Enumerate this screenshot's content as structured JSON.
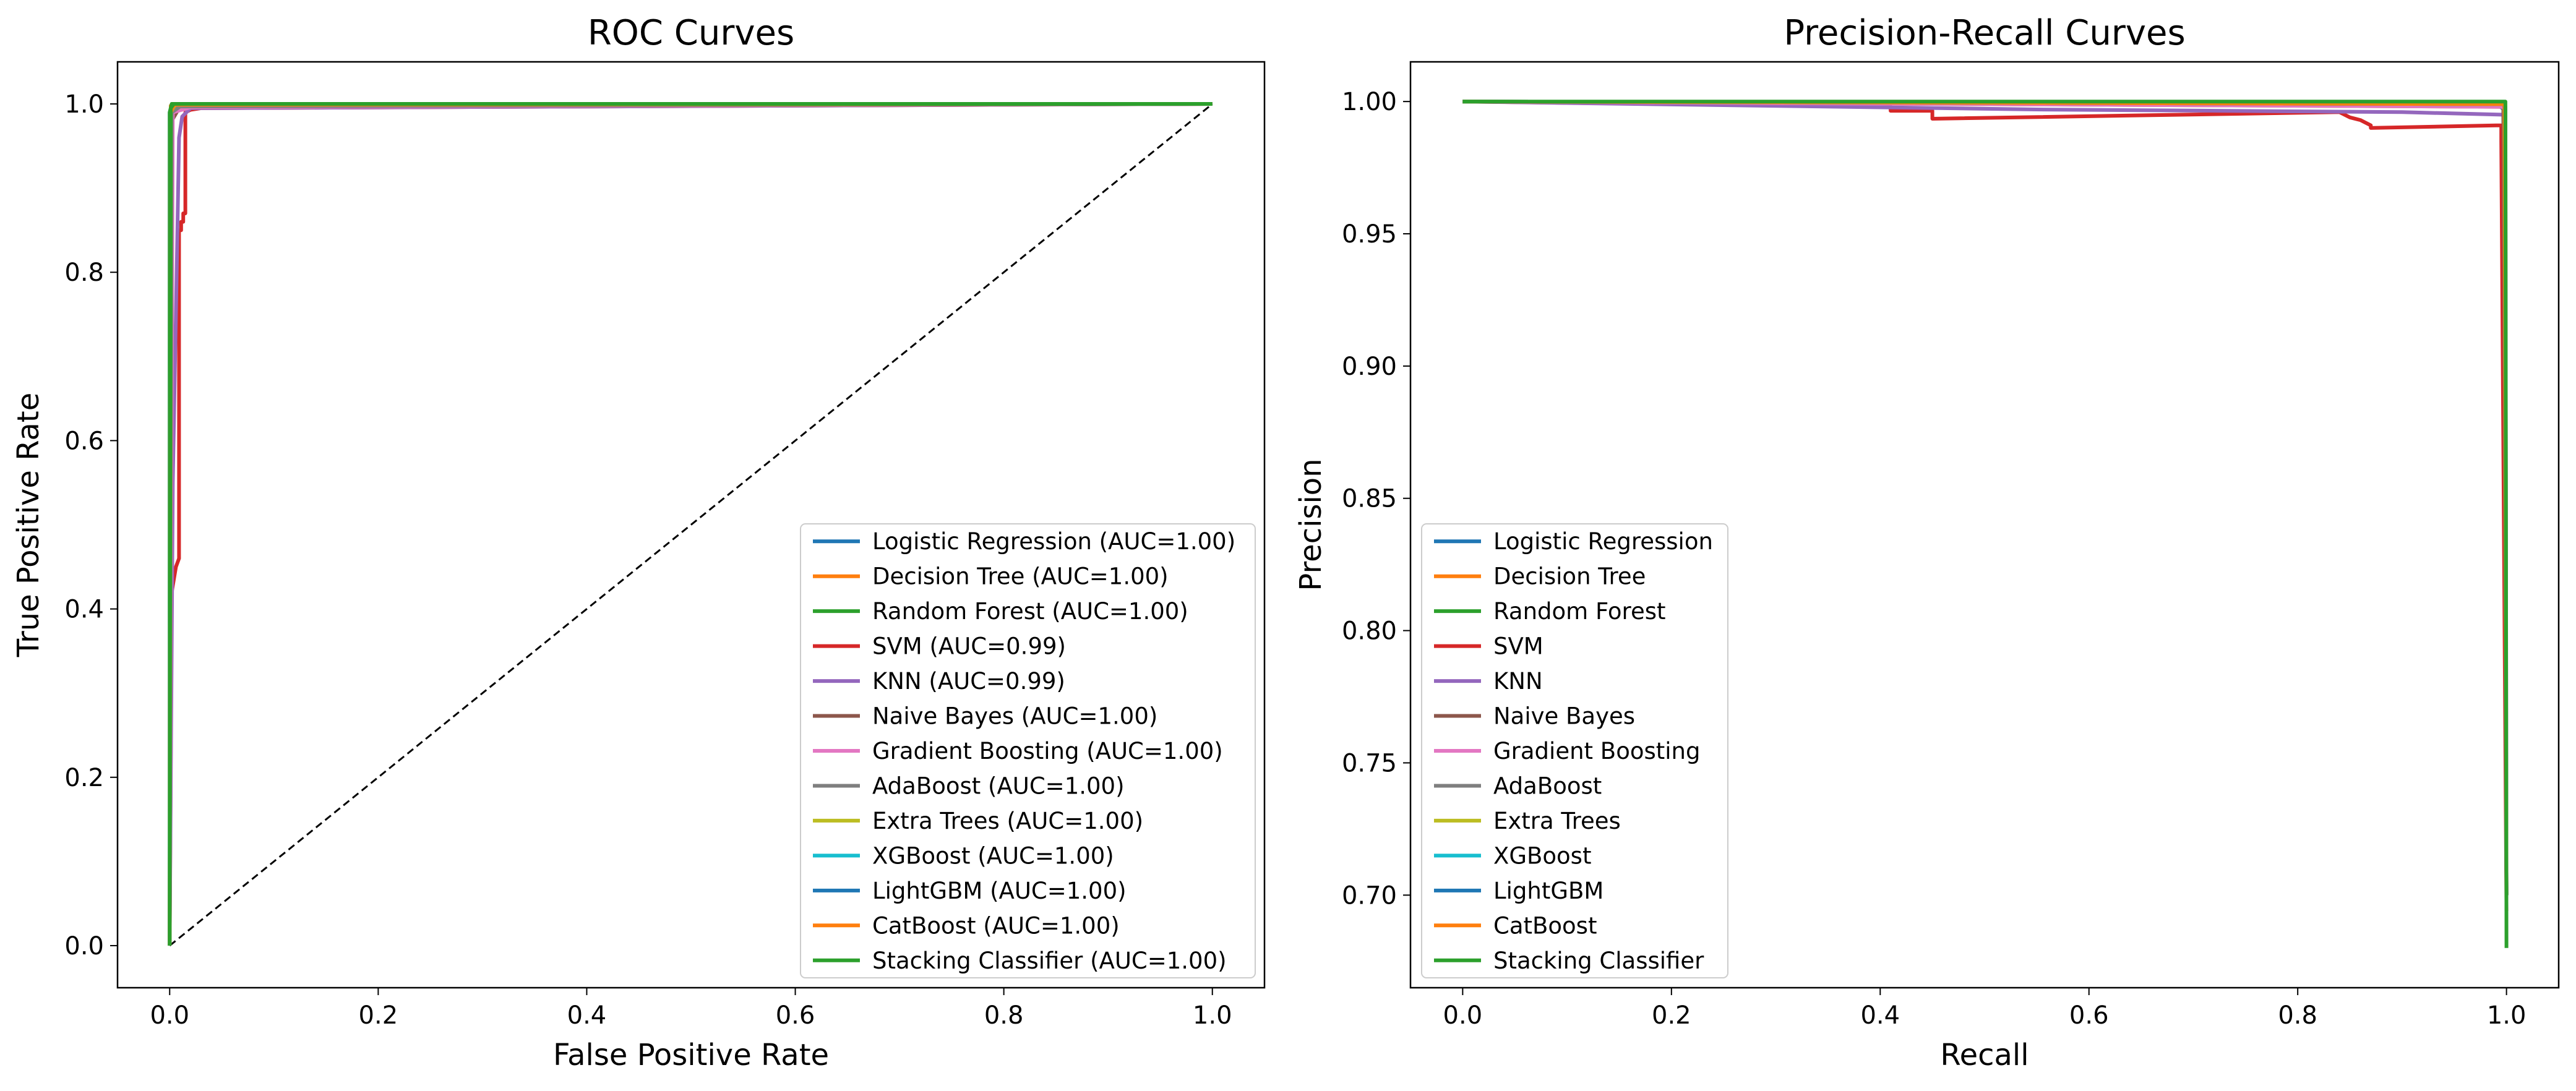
{
  "chart_data": [
    {
      "type": "line",
      "title": "ROC Curves",
      "xlabel": "False Positive Rate",
      "ylabel": "True Positive Rate",
      "xlim": [
        -0.05,
        1.05
      ],
      "ylim": [
        -0.05,
        1.05
      ],
      "xticks": [
        0.0,
        0.2,
        0.4,
        0.6,
        0.8,
        1.0
      ],
      "yticks": [
        0.0,
        0.2,
        0.4,
        0.6,
        0.8,
        1.0
      ],
      "xtick_labels": [
        "0.0",
        "0.2",
        "0.4",
        "0.6",
        "0.8",
        "1.0"
      ],
      "ytick_labels": [
        "0.0",
        "0.2",
        "0.4",
        "0.6",
        "0.8",
        "1.0"
      ],
      "grid": false,
      "legend": "lower-right",
      "reference_line": {
        "x": [
          0,
          1
        ],
        "y": [
          0,
          1
        ],
        "color": "#000000",
        "style": "dashed"
      },
      "series": [
        {
          "name": "Logistic Regression (AUC=1.00)",
          "color": "#1f77b4",
          "x": [
            0,
            0,
            0.002,
            1.0
          ],
          "y": [
            0,
            0.99,
            0.999,
            1.0
          ]
        },
        {
          "name": "Decision Tree (AUC=1.00)",
          "color": "#ff7f0e",
          "x": [
            0,
            0.001,
            1.0
          ],
          "y": [
            0,
            0.998,
            1.0
          ]
        },
        {
          "name": "Random Forest (AUC=1.00)",
          "color": "#2ca02c",
          "x": [
            0,
            0,
            0.002,
            1.0
          ],
          "y": [
            0,
            0.99,
            1.0,
            1.0
          ]
        },
        {
          "name": "SVM (AUC=0.99)",
          "color": "#d62728",
          "x": [
            0,
            0.002,
            0.006,
            0.009,
            0.009,
            0.011,
            0.011,
            0.013,
            0.013,
            0.015,
            0.015,
            0.02,
            0.03,
            1.0
          ],
          "y": [
            0,
            0.42,
            0.45,
            0.46,
            0.85,
            0.85,
            0.86,
            0.86,
            0.87,
            0.87,
            0.99,
            0.993,
            0.995,
            1.0
          ]
        },
        {
          "name": "KNN (AUC=0.99)",
          "color": "#9467bd",
          "x": [
            0,
            0.003,
            0.007,
            0.009,
            0.012,
            0.02,
            1.0
          ],
          "y": [
            0,
            0.55,
            0.82,
            0.96,
            0.985,
            0.995,
            1.0
          ]
        },
        {
          "name": "Naive Bayes (AUC=1.00)",
          "color": "#8c564b",
          "x": [
            0,
            0.002,
            0.01,
            1.0
          ],
          "y": [
            0,
            0.98,
            0.997,
            1.0
          ]
        },
        {
          "name": "Gradient Boosting (AUC=1.00)",
          "color": "#e377c2",
          "x": [
            0,
            0.003,
            0.02,
            1.0
          ],
          "y": [
            0,
            0.99,
            0.996,
            1.0
          ]
        },
        {
          "name": "AdaBoost (AUC=1.00)",
          "color": "#7f7f7f",
          "x": [
            0,
            0.002,
            0.01,
            1.0
          ],
          "y": [
            0,
            0.99,
            0.997,
            1.0
          ]
        },
        {
          "name": "Extra Trees (AUC=1.00)",
          "color": "#bcbd22",
          "x": [
            0,
            0.001,
            0.005,
            1.0
          ],
          "y": [
            0,
            0.99,
            0.999,
            1.0
          ]
        },
        {
          "name": "XGBoost (AUC=1.00)",
          "color": "#17becf",
          "x": [
            0,
            0.001,
            0.004,
            1.0
          ],
          "y": [
            0,
            0.99,
            0.999,
            1.0
          ]
        },
        {
          "name": "LightGBM (AUC=1.00)",
          "color": "#1f77b4",
          "x": [
            0,
            0.001,
            0.004,
            1.0
          ],
          "y": [
            0,
            0.99,
            0.999,
            1.0
          ]
        },
        {
          "name": "CatBoost (AUC=1.00)",
          "color": "#ff7f0e",
          "x": [
            0,
            0.001,
            0.004,
            1.0
          ],
          "y": [
            0,
            0.99,
            0.999,
            1.0
          ]
        },
        {
          "name": "Stacking Classifier (AUC=1.00)",
          "color": "#2ca02c",
          "x": [
            0,
            0.001,
            0.004,
            1.0
          ],
          "y": [
            0,
            0.995,
            1.0,
            1.0
          ]
        }
      ]
    },
    {
      "type": "line",
      "title": "Precision-Recall Curves",
      "xlabel": "Recall",
      "ylabel": "Precision",
      "xlim": [
        -0.05,
        1.05
      ],
      "ylim": [
        0.665,
        1.015
      ],
      "xticks": [
        0.0,
        0.2,
        0.4,
        0.6,
        0.8,
        1.0
      ],
      "yticks": [
        0.7,
        0.75,
        0.8,
        0.85,
        0.9,
        0.95,
        1.0
      ],
      "xtick_labels": [
        "0.0",
        "0.2",
        "0.4",
        "0.6",
        "0.8",
        "1.0"
      ],
      "ytick_labels": [
        "0.70",
        "0.75",
        "0.80",
        "0.85",
        "0.90",
        "0.95",
        "1.00"
      ],
      "grid": false,
      "legend": "lower-left",
      "series": [
        {
          "name": "Logistic Regression",
          "color": "#1f77b4",
          "x": [
            0,
            0.99,
            0.998,
            1.0
          ],
          "y": [
            1.0,
            0.999,
            0.997,
            0.7
          ]
        },
        {
          "name": "Decision Tree",
          "color": "#ff7f0e",
          "x": [
            0,
            0.998,
            1.0
          ],
          "y": [
            1.0,
            0.998,
            0.7
          ]
        },
        {
          "name": "Random Forest",
          "color": "#2ca02c",
          "x": [
            0,
            0.997,
            1.0
          ],
          "y": [
            1.0,
            0.999,
            0.7
          ]
        },
        {
          "name": "SVM",
          "color": "#d62728",
          "x": [
            0,
            0.41,
            0.41,
            0.45,
            0.45,
            0.84,
            0.85,
            0.86,
            0.87,
            0.87,
            0.99,
            0.995,
            0.995,
            1.0
          ],
          "y": [
            1.0,
            0.998,
            0.9965,
            0.9965,
            0.9935,
            0.996,
            0.994,
            0.993,
            0.991,
            0.99,
            0.991,
            0.991,
            0.985,
            0.694
          ]
        },
        {
          "name": "KNN",
          "color": "#9467bd",
          "x": [
            0,
            0.55,
            0.9,
            0.998,
            0.998,
            1.0
          ],
          "y": [
            1.0,
            0.997,
            0.996,
            0.995,
            0.91,
            0.7
          ]
        },
        {
          "name": "Naive Bayes",
          "color": "#8c564b",
          "x": [
            0,
            0.99,
            0.997,
            1.0
          ],
          "y": [
            1.0,
            0.999,
            0.998,
            0.7
          ]
        },
        {
          "name": "Gradient Boosting",
          "color": "#e377c2",
          "x": [
            0,
            0.996,
            0.999,
            1.0
          ],
          "y": [
            1.0,
            0.998,
            0.997,
            0.7
          ]
        },
        {
          "name": "AdaBoost",
          "color": "#7f7f7f",
          "x": [
            0,
            0.996,
            0.999,
            1.0
          ],
          "y": [
            1.0,
            0.999,
            0.998,
            0.7
          ]
        },
        {
          "name": "Extra Trees",
          "color": "#bcbd22",
          "x": [
            0,
            0.998,
            1.0
          ],
          "y": [
            1.0,
            0.999,
            0.7
          ]
        },
        {
          "name": "XGBoost",
          "color": "#17becf",
          "x": [
            0,
            0.998,
            1.0
          ],
          "y": [
            1.0,
            0.999,
            0.7
          ]
        },
        {
          "name": "LightGBM",
          "color": "#1f77b4",
          "x": [
            0,
            0.998,
            1.0
          ],
          "y": [
            1.0,
            0.999,
            0.7
          ]
        },
        {
          "name": "CatBoost",
          "color": "#ff7f0e",
          "x": [
            0,
            0.998,
            1.0
          ],
          "y": [
            1.0,
            0.999,
            0.7
          ]
        },
        {
          "name": "Stacking Classifier",
          "color": "#2ca02c",
          "x": [
            0,
            0.999,
            0.999,
            1.0
          ],
          "y": [
            1.0,
            1.0,
            0.995,
            0.68
          ]
        }
      ]
    }
  ]
}
